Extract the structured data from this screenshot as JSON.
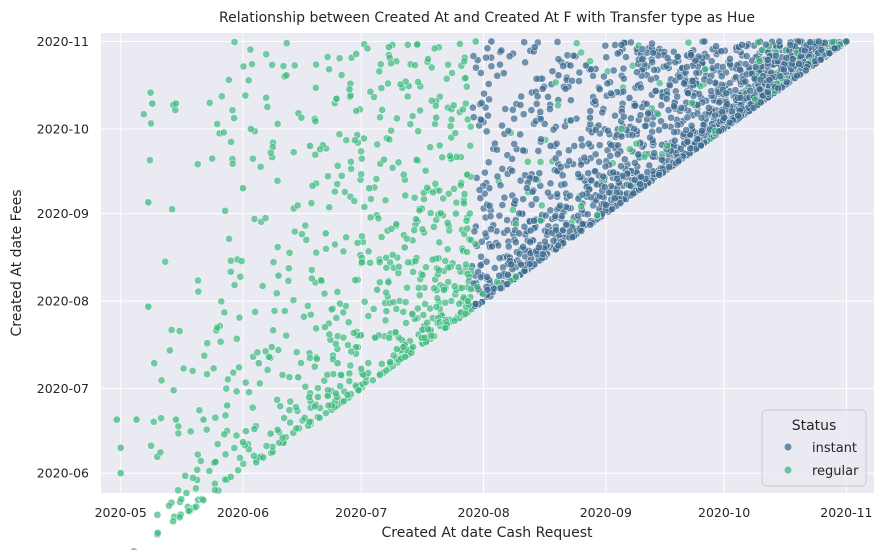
{
  "chart_data": {
    "type": "scatter",
    "title": "Relationship between Created At and Created At F with Transfer type as Hue",
    "xlabel": "Created At date Cash Request",
    "ylabel": "Created At date Fees",
    "xlim": [
      "2020-04-26",
      "2020-11-08"
    ],
    "ylim": [
      "2020-05-25",
      "2020-11-04"
    ],
    "x_ticks": [
      "2020-05",
      "2020-06",
      "2020-07",
      "2020-08",
      "2020-09",
      "2020-10",
      "2020-11"
    ],
    "y_ticks": [
      "2020-06",
      "2020-07",
      "2020-08",
      "2020-09",
      "2020-10",
      "2020-11"
    ],
    "grid": true,
    "legend": {
      "title": "Status",
      "placement": "bottom-right",
      "entries": [
        "instant",
        "regular"
      ]
    },
    "series": [
      {
        "name": "instant",
        "color": "#3b6a8f",
        "points": [
          [
            "2020-07-30",
            "2020-07-31"
          ],
          [
            "2020-08-02",
            "2020-08-05"
          ],
          [
            "2020-08-05",
            "2020-08-10"
          ],
          [
            "2020-08-08",
            "2020-08-14"
          ],
          [
            "2020-08-10",
            "2020-08-25"
          ],
          [
            "2020-08-12",
            "2020-09-10"
          ],
          [
            "2020-08-15",
            "2020-08-20"
          ],
          [
            "2020-08-18",
            "2020-09-25"
          ],
          [
            "2020-08-20",
            "2020-10-20"
          ],
          [
            "2020-08-22",
            "2020-08-28"
          ],
          [
            "2020-08-25",
            "2020-09-15"
          ],
          [
            "2020-08-28",
            "2020-10-05"
          ],
          [
            "2020-09-01",
            "2020-09-04"
          ],
          [
            "2020-09-04",
            "2020-09-22"
          ],
          [
            "2020-09-07",
            "2020-10-12"
          ],
          [
            "2020-09-10",
            "2020-09-14"
          ],
          [
            "2020-09-13",
            "2020-10-28"
          ],
          [
            "2020-09-16",
            "2020-10-02"
          ],
          [
            "2020-09-20",
            "2020-09-24"
          ],
          [
            "2020-09-23",
            "2020-10-18"
          ],
          [
            "2020-09-26",
            "2020-11-01"
          ],
          [
            "2020-10-01",
            "2020-10-05"
          ],
          [
            "2020-10-05",
            "2020-10-22"
          ],
          [
            "2020-10-10",
            "2020-10-15"
          ],
          [
            "2020-10-15",
            "2020-11-01"
          ],
          [
            "2020-10-20",
            "2020-10-24"
          ],
          [
            "2020-10-25",
            "2020-11-01"
          ],
          [
            "2020-11-01",
            "2020-11-01"
          ],
          [
            "2020-08-03",
            "2020-11-01"
          ],
          [
            "2020-08-14",
            "2020-10-30"
          ]
        ]
      },
      {
        "name": "regular",
        "color": "#3dba7f",
        "points": [
          [
            "2020-05-01",
            "2020-06-01"
          ],
          [
            "2020-05-01",
            "2020-06-10"
          ],
          [
            "2020-04-30",
            "2020-06-20"
          ],
          [
            "2020-05-05",
            "2020-06-20"
          ],
          [
            "2020-05-08",
            "2020-07-30"
          ],
          [
            "2020-05-08",
            "2020-09-05"
          ],
          [
            "2020-05-09",
            "2020-10-10"
          ],
          [
            "2020-05-15",
            "2020-06-20"
          ],
          [
            "2020-05-15",
            "2020-10-10"
          ],
          [
            "2020-05-22",
            "2020-06-20"
          ],
          [
            "2020-05-25",
            "2020-06-05"
          ],
          [
            "2020-05-28",
            "2020-06-25"
          ],
          [
            "2020-06-01",
            "2020-06-12"
          ],
          [
            "2020-06-01",
            "2020-09-10"
          ],
          [
            "2020-06-03",
            "2020-10-01"
          ],
          [
            "2020-06-05",
            "2020-07-10"
          ],
          [
            "2020-06-08",
            "2020-06-15"
          ],
          [
            "2020-06-10",
            "2020-08-10"
          ],
          [
            "2020-06-12",
            "2020-10-20"
          ],
          [
            "2020-06-15",
            "2020-07-05"
          ],
          [
            "2020-06-18",
            "2020-09-25"
          ],
          [
            "2020-06-20",
            "2020-06-28"
          ],
          [
            "2020-06-22",
            "2020-08-25"
          ],
          [
            "2020-06-25",
            "2020-07-10"
          ],
          [
            "2020-06-28",
            "2020-10-15"
          ],
          [
            "2020-07-01",
            "2020-07-08"
          ],
          [
            "2020-07-03",
            "2020-09-10"
          ],
          [
            "2020-07-05",
            "2020-08-05"
          ],
          [
            "2020-07-08",
            "2020-10-30"
          ],
          [
            "2020-07-10",
            "2020-07-15"
          ],
          [
            "2020-07-12",
            "2020-08-20"
          ],
          [
            "2020-07-15",
            "2020-09-20"
          ],
          [
            "2020-07-18",
            "2020-07-22"
          ],
          [
            "2020-07-20",
            "2020-10-05"
          ],
          [
            "2020-07-22",
            "2020-08-05"
          ],
          [
            "2020-07-25",
            "2020-09-01"
          ],
          [
            "2020-07-28",
            "2020-08-01"
          ],
          [
            "2020-07-30",
            "2020-11-01"
          ],
          [
            "2020-09-05",
            "2020-10-01"
          ],
          [
            "2020-10-10",
            "2020-10-25"
          ]
        ]
      }
    ]
  }
}
